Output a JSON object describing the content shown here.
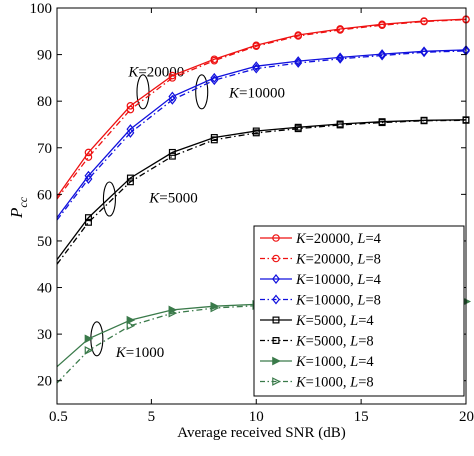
{
  "chart_data": {
    "type": "line",
    "xlabel": "Average received SNR (dB)",
    "ylabel": {
      "main": "P",
      "sub": "cc"
    },
    "xlim": [
      0.5,
      20
    ],
    "ylim": [
      15,
      100
    ],
    "xticks": [
      0.5,
      5,
      10,
      15,
      20
    ],
    "xtick_labels": [
      "0.5",
      "5",
      "10",
      "15",
      "20"
    ],
    "yticks": [
      20,
      30,
      40,
      50,
      60,
      70,
      80,
      90,
      100
    ],
    "ytick_labels": [
      "20",
      "30",
      "40",
      "50",
      "60",
      "70",
      "80",
      "90",
      "100"
    ],
    "grid": false,
    "legend_position": "bottom-right",
    "series": [
      {
        "name": "K=20000, L=4",
        "label_parts": [
          "K",
          "=20000, ",
          "L",
          "=4"
        ],
        "color": "#ee1111",
        "marker": "circle",
        "filled": false,
        "dash": "solid",
        "x": [
          0.5,
          2,
          4,
          6,
          8,
          10,
          12,
          14,
          16,
          18,
          20
        ],
        "y": [
          59.5,
          69,
          79,
          85.5,
          89,
          92,
          94.2,
          95.5,
          96.5,
          97.2,
          97.6
        ]
      },
      {
        "name": "K=20000, L=8",
        "label_parts": [
          "K",
          "=20000, ",
          "L",
          "=8"
        ],
        "color": "#ee1111",
        "marker": "circle",
        "filled": false,
        "dash": "dashdot",
        "x": [
          0.5,
          2,
          4,
          6,
          8,
          10,
          12,
          14,
          16,
          18,
          20
        ],
        "y": [
          59,
          68,
          78.2,
          85,
          88.7,
          91.8,
          94,
          95.3,
          96.3,
          97.1,
          97.5
        ]
      },
      {
        "name": "K=10000, L=4",
        "label_parts": [
          "K",
          "=10000, ",
          "L",
          "=4"
        ],
        "color": "#1111dd",
        "marker": "diamond",
        "filled": false,
        "dash": "solid",
        "x": [
          0.5,
          2,
          4,
          6,
          8,
          10,
          12,
          14,
          16,
          18,
          20
        ],
        "y": [
          55,
          64,
          74,
          81,
          85,
          87.5,
          88.6,
          89.4,
          90.1,
          90.7,
          91
        ]
      },
      {
        "name": "K=10000, L=8",
        "label_parts": [
          "K",
          "=10000, ",
          "L",
          "=8"
        ],
        "color": "#1111dd",
        "marker": "diamond",
        "filled": false,
        "dash": "dashdot",
        "x": [
          0.5,
          2,
          4,
          6,
          8,
          10,
          12,
          14,
          16,
          18,
          20
        ],
        "y": [
          54.5,
          63.3,
          73.2,
          80.3,
          84.5,
          87,
          88.2,
          89.1,
          89.8,
          90.5,
          90.8
        ]
      },
      {
        "name": "K=5000, L=4",
        "label_parts": [
          "K",
          "=5000, ",
          "L",
          "=4"
        ],
        "color": "#000000",
        "marker": "square",
        "filled": false,
        "dash": "solid",
        "x": [
          0.5,
          2,
          4,
          6,
          8,
          10,
          12,
          14,
          16,
          18,
          20
        ],
        "y": [
          46,
          55,
          63.5,
          69,
          72.2,
          73.6,
          74.4,
          75.1,
          75.6,
          75.9,
          76
        ]
      },
      {
        "name": "K=5000, L=8",
        "label_parts": [
          "K",
          "=5000, ",
          "L",
          "=8"
        ],
        "color": "#000000",
        "marker": "square",
        "filled": false,
        "dash": "dashdot",
        "x": [
          0.5,
          2,
          4,
          6,
          8,
          10,
          12,
          14,
          16,
          18,
          20
        ],
        "y": [
          45,
          54,
          62.7,
          68.2,
          71.7,
          73.2,
          74.1,
          74.9,
          75.4,
          75.8,
          75.9
        ]
      },
      {
        "name": "K=1000, L=4",
        "label_parts": [
          "K",
          "=1000, ",
          "L",
          "=4"
        ],
        "color": "#3a7a4a",
        "marker": "triangle-right",
        "filled": true,
        "dash": "solid",
        "x": [
          0.5,
          2,
          4,
          6,
          8,
          10,
          12,
          14,
          16,
          18,
          20
        ],
        "y": [
          23,
          29,
          33,
          35.2,
          36,
          36.4,
          36.6,
          36.8,
          36.9,
          37,
          37
        ]
      },
      {
        "name": "K=1000, L=8",
        "label_parts": [
          "K",
          "=1000, ",
          "L",
          "=8"
        ],
        "color": "#3a7a4a",
        "marker": "triangle-right",
        "filled": false,
        "dash": "dashdot",
        "x": [
          0.5,
          2,
          4,
          6,
          8,
          10,
          12,
          14,
          16,
          18,
          20
        ],
        "y": [
          19.5,
          26.5,
          31.8,
          34.5,
          35.6,
          36.1,
          36.5,
          36.7,
          36.8,
          36.9,
          37
        ]
      }
    ],
    "annotations": [
      {
        "k": "K",
        "rest": "=20000",
        "text_at": [
          3.9,
          85.3
        ],
        "ellipse_at": [
          4.6,
          82
        ]
      },
      {
        "k": "K",
        "rest": "=10000",
        "text_at": [
          8.7,
          80.8
        ],
        "ellipse_at": [
          7.4,
          82
        ]
      },
      {
        "k": "K",
        "rest": "=5000",
        "text_at": [
          4.9,
          58.2
        ],
        "ellipse_at": [
          3.0,
          59
        ]
      },
      {
        "k": "K",
        "rest": "=1000",
        "text_at": [
          3.3,
          25.1
        ],
        "ellipse_at": [
          2.4,
          29
        ]
      }
    ]
  }
}
